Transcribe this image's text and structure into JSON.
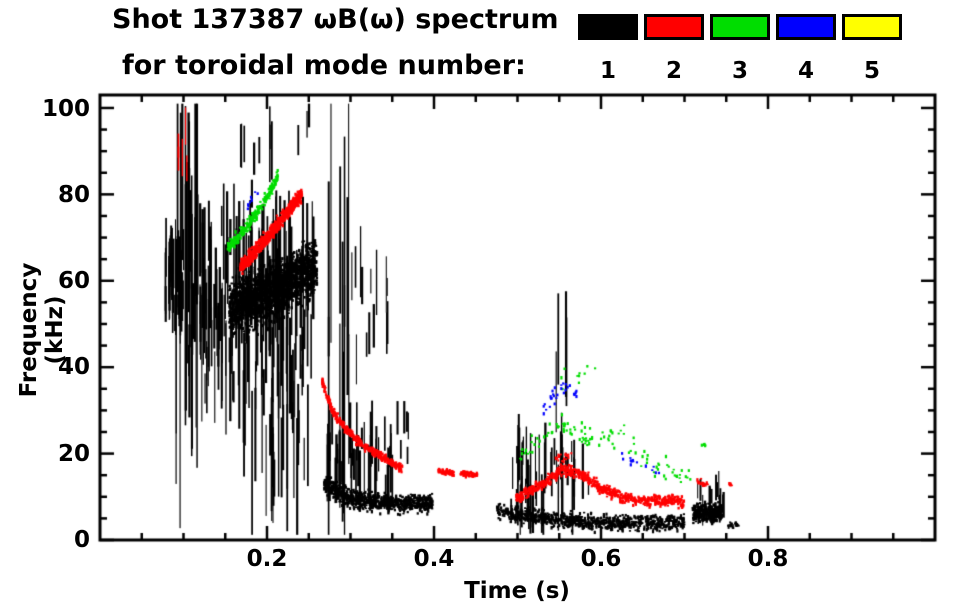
{
  "header": {
    "title_line1": "Shot 137387 ωB(ω) spectrum",
    "title_line2": "for toroidal mode number:"
  },
  "chart_data": {
    "type": "scatter",
    "title": "Shot 137387 ωB(ω) spectrum for toroidal mode number",
    "xlabel": "Time (s)",
    "ylabel": "Frequency (kHz)",
    "xlim": [
      0,
      1.0
    ],
    "ylim": [
      0,
      103
    ],
    "xticks": [
      0.2,
      0.4,
      0.6,
      0.8
    ],
    "yticks": [
      0,
      20,
      40,
      60,
      80,
      100
    ],
    "xtick_labels": [
      "0.2",
      "0.4",
      "0.6",
      "0.8"
    ],
    "ytick_labels": [
      "0",
      "20",
      "40",
      "60",
      "80",
      "100"
    ],
    "xminor": 0.05,
    "yminor": 5,
    "grid": false,
    "legend_position": "top-right",
    "legend": [
      {
        "label": "1",
        "color": "#000000"
      },
      {
        "label": "2",
        "color": "#ff0000"
      },
      {
        "label": "3",
        "color": "#00dd00"
      },
      {
        "label": "4",
        "color": "#0000ff"
      },
      {
        "label": "5",
        "color": "#ffff00"
      }
    ],
    "series": [
      {
        "name": "mode 1",
        "color": "#000000",
        "elements": [
          {
            "kind": "streaks",
            "t": [
              0.075,
              0.1
            ],
            "f": [
              52,
              68
            ],
            "n": 45,
            "lmin": 4,
            "lmax": 16
          },
          {
            "kind": "streaks",
            "t": [
              0.088,
              0.118
            ],
            "f": [
              30,
              92
            ],
            "n": 14,
            "lmin": 20,
            "lmax": 70
          },
          {
            "kind": "streaks",
            "t": [
              0.096,
              0.104
            ],
            "f": [
              55,
              98
            ],
            "n": 4,
            "lmin": 40,
            "lmax": 80
          },
          {
            "kind": "streaks",
            "t": [
              0.105,
              0.16
            ],
            "f": [
              34,
              74
            ],
            "n": 70,
            "lmin": 5,
            "lmax": 30
          },
          {
            "kind": "band",
            "path": [
              [
                0.155,
                54
              ],
              [
                0.2,
                57
              ],
              [
                0.26,
                64
              ]
            ],
            "hw": 9,
            "n": 1600,
            "sz": 2.5
          },
          {
            "kind": "streaks",
            "t": [
              0.16,
              0.255
            ],
            "f": [
              40,
              70
            ],
            "n": 90,
            "lmin": 8,
            "lmax": 28
          },
          {
            "kind": "streaks",
            "t": [
              0.165,
              0.25
            ],
            "f": [
              14,
              42
            ],
            "n": 40,
            "lmin": 6,
            "lmax": 34
          },
          {
            "kind": "streaks",
            "t": [
              0.16,
              0.205
            ],
            "f": [
              72,
              100
            ],
            "n": 10,
            "lmin": 4,
            "lmax": 22
          },
          {
            "kind": "streaks",
            "t": [
              0.235,
              0.25
            ],
            "f": [
              88,
              100
            ],
            "n": 3,
            "lmin": 4,
            "lmax": 10
          },
          {
            "kind": "streaks",
            "t": [
              0.272,
              0.298
            ],
            "f": [
              12,
              100
            ],
            "n": 12,
            "lmin": 30,
            "lmax": 88
          },
          {
            "kind": "streaks",
            "t": [
              0.3,
              0.345
            ],
            "f": [
              40,
              66
            ],
            "n": 14,
            "lmin": 4,
            "lmax": 18
          },
          {
            "kind": "band",
            "path": [
              [
                0.268,
                13
              ],
              [
                0.3,
                9.5
              ],
              [
                0.34,
                8.5
              ],
              [
                0.398,
                8.5
              ]
            ],
            "hw": 3,
            "n": 900,
            "sz": 2.2
          },
          {
            "kind": "streaks",
            "t": [
              0.27,
              0.35
            ],
            "f": [
              12,
              26
            ],
            "n": 45,
            "lmin": 4,
            "lmax": 16
          },
          {
            "kind": "streaks",
            "t": [
              0.352,
              0.37
            ],
            "f": [
              18,
              30
            ],
            "n": 6,
            "lmin": 3,
            "lmax": 8
          },
          {
            "kind": "band",
            "path": [
              [
                0.475,
                7
              ],
              [
                0.5,
                6
              ],
              [
                0.56,
                4.5
              ],
              [
                0.62,
                3.8
              ],
              [
                0.7,
                4.2
              ]
            ],
            "hw": 2.5,
            "n": 900,
            "sz": 2.2
          },
          {
            "kind": "streaks",
            "t": [
              0.49,
              0.585
            ],
            "f": [
              6,
              22
            ],
            "n": 50,
            "lmin": 4,
            "lmax": 16
          },
          {
            "kind": "streaks",
            "t": [
              0.545,
              0.558
            ],
            "f": [
              18,
              48
            ],
            "n": 5,
            "lmin": 10,
            "lmax": 26
          },
          {
            "kind": "band",
            "path": [
              [
                0.71,
                6
              ],
              [
                0.745,
                6.5
              ]
            ],
            "hw": 3,
            "n": 300,
            "sz": 2.4
          },
          {
            "kind": "streaks",
            "t": [
              0.715,
              0.748
            ],
            "f": [
              6,
              13
            ],
            "n": 14,
            "lmin": 3,
            "lmax": 8
          },
          {
            "kind": "band",
            "path": [
              [
                0.752,
                3.5
              ],
              [
                0.765,
                3.5
              ]
            ],
            "hw": 1,
            "n": 25,
            "sz": 2
          }
        ]
      },
      {
        "name": "mode 2",
        "color": "#ff0000",
        "elements": [
          {
            "kind": "streaks",
            "t": [
              0.092,
              0.104
            ],
            "f": [
              86,
              97
            ],
            "n": 5,
            "lmin": 3,
            "lmax": 9
          },
          {
            "kind": "band",
            "path": [
              [
                0.168,
                63
              ],
              [
                0.2,
                70
              ],
              [
                0.225,
                76
              ],
              [
                0.242,
                80
              ]
            ],
            "hw": 2.4,
            "n": 650,
            "sz": 2.4
          },
          {
            "kind": "band",
            "path": [
              [
                0.266,
                37
              ],
              [
                0.278,
                30
              ],
              [
                0.295,
                25.5
              ],
              [
                0.315,
                22
              ],
              [
                0.34,
                19
              ],
              [
                0.362,
                16.5
              ]
            ],
            "hw": 1.4,
            "n": 420,
            "sz": 2.2
          },
          {
            "kind": "band",
            "path": [
              [
                0.405,
                16
              ],
              [
                0.424,
                15.5
              ]
            ],
            "hw": 0.8,
            "n": 60,
            "sz": 2.2
          },
          {
            "kind": "band",
            "path": [
              [
                0.432,
                15.5
              ],
              [
                0.452,
                15
              ]
            ],
            "hw": 0.8,
            "n": 60,
            "sz": 2.2
          },
          {
            "kind": "band",
            "path": [
              [
                0.497,
                9.5
              ],
              [
                0.53,
                13
              ],
              [
                0.555,
                16.5
              ],
              [
                0.578,
                15
              ],
              [
                0.6,
                12
              ],
              [
                0.625,
                10
              ],
              [
                0.655,
                9
              ],
              [
                0.685,
                9.5
              ],
              [
                0.7,
                8.5
              ]
            ],
            "hw": 1.8,
            "n": 650,
            "sz": 2.3
          },
          {
            "kind": "band",
            "path": [
              [
                0.545,
                19
              ],
              [
                0.565,
                19.5
              ]
            ],
            "hw": 1.2,
            "n": 25,
            "sz": 2
          },
          {
            "kind": "band",
            "path": [
              [
                0.715,
                13.5
              ],
              [
                0.728,
                13
              ]
            ],
            "hw": 1,
            "n": 18,
            "sz": 2.2
          },
          {
            "kind": "band",
            "path": [
              [
                0.752,
                13
              ],
              [
                0.758,
                12.5
              ]
            ],
            "hw": 0.8,
            "n": 6,
            "sz": 2.2
          }
        ]
      },
      {
        "name": "mode 3",
        "color": "#00dd00",
        "elements": [
          {
            "kind": "band",
            "path": [
              [
                0.153,
                67.5
              ],
              [
                0.178,
                73
              ],
              [
                0.198,
                79
              ],
              [
                0.213,
                84
              ]
            ],
            "hw": 2,
            "n": 230,
            "sz": 2.3
          },
          {
            "kind": "band",
            "path": [
              [
                0.503,
                19
              ],
              [
                0.525,
                23
              ],
              [
                0.548,
                27
              ],
              [
                0.572,
                25
              ],
              [
                0.6,
                23
              ],
              [
                0.628,
                24
              ],
              [
                0.655,
                18
              ],
              [
                0.685,
                15.5
              ],
              [
                0.71,
                14
              ]
            ],
            "hw": 3.5,
            "n": 110,
            "sz": 2.2
          },
          {
            "kind": "band",
            "path": [
              [
                0.548,
                37
              ],
              [
                0.598,
                40
              ]
            ],
            "hw": 3,
            "n": 10,
            "sz": 2.2
          },
          {
            "kind": "band",
            "path": [
              [
                0.718,
                22
              ],
              [
                0.725,
                22
              ]
            ],
            "hw": 1,
            "n": 5,
            "sz": 2.2
          }
        ]
      },
      {
        "name": "mode 4",
        "color": "#0000ff",
        "elements": [
          {
            "kind": "band",
            "path": [
              [
                0.173,
                77
              ],
              [
                0.192,
                80.5
              ]
            ],
            "hw": 1.5,
            "n": 8,
            "sz": 2.2
          },
          {
            "kind": "band",
            "path": [
              [
                0.528,
                30
              ],
              [
                0.545,
                34
              ],
              [
                0.558,
                36
              ],
              [
                0.572,
                33
              ]
            ],
            "hw": 3,
            "n": 28,
            "sz": 2.2
          },
          {
            "kind": "band",
            "path": [
              [
                0.615,
                21
              ],
              [
                0.645,
                18
              ],
              [
                0.672,
                15.5
              ]
            ],
            "hw": 2,
            "n": 14,
            "sz": 2.2
          }
        ]
      },
      {
        "name": "mode 5",
        "color": "#ffff00",
        "elements": []
      }
    ]
  }
}
